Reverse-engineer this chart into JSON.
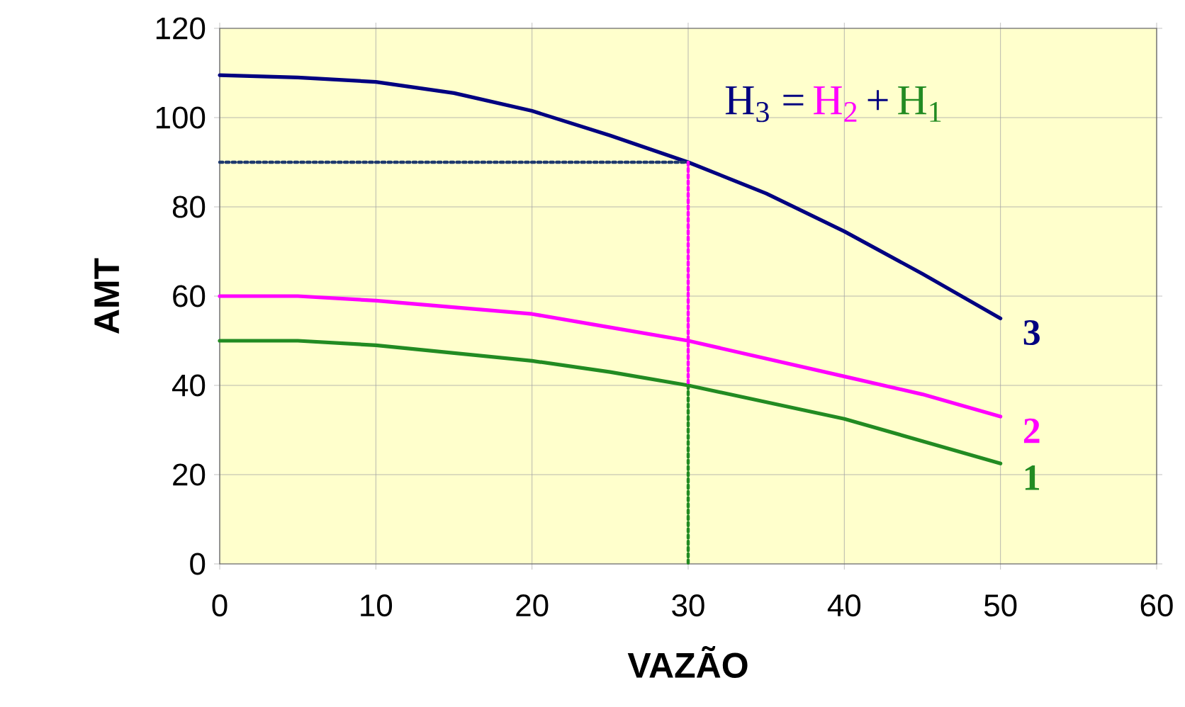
{
  "chart_data": {
    "type": "line",
    "xlabel": "VAZÃO",
    "ylabel": "AMT",
    "xlim": [
      0,
      60
    ],
    "ylim": [
      0,
      120
    ],
    "xticks": [
      0,
      10,
      20,
      30,
      40,
      50,
      60
    ],
    "yticks": [
      0,
      20,
      40,
      60,
      80,
      100,
      120
    ],
    "grid": true,
    "marker": "none",
    "series": [
      {
        "name": "1",
        "color": "#228b22",
        "x": [
          0,
          5,
          10,
          20,
          25,
          30,
          40,
          45,
          50
        ],
        "values": [
          50,
          50,
          49,
          45.5,
          43,
          40,
          32.5,
          27.5,
          22.5
        ]
      },
      {
        "name": "2",
        "color": "#ff00ff",
        "x": [
          0,
          5,
          10,
          20,
          25,
          30,
          40,
          45,
          50
        ],
        "values": [
          60,
          60,
          59,
          56,
          53,
          50,
          42,
          38,
          33
        ]
      },
      {
        "name": "3",
        "color": "#000080",
        "x": [
          0,
          5,
          10,
          15,
          20,
          25,
          30,
          35,
          40,
          45,
          50
        ],
        "values": [
          109.5,
          109,
          108,
          105.5,
          101.5,
          96,
          90,
          83,
          74.5,
          65,
          55
        ]
      },
      {
        "color": "#1f3a6e",
        "line_style": "dotted",
        "x": [
          0,
          30
        ],
        "values": [
          90,
          90
        ]
      },
      {
        "color": "#ff00ff",
        "line_style": "dotted",
        "x": [
          30,
          30
        ],
        "values": [
          90,
          40
        ]
      },
      {
        "color": "#228b22",
        "line_style": "dotted",
        "x": [
          30,
          30
        ],
        "values": [
          40,
          0
        ]
      }
    ],
    "annotations": [
      "H$_{3}$ =",
      "H$_{2}$",
      "+",
      "H$_{1}$"
    ]
  }
}
